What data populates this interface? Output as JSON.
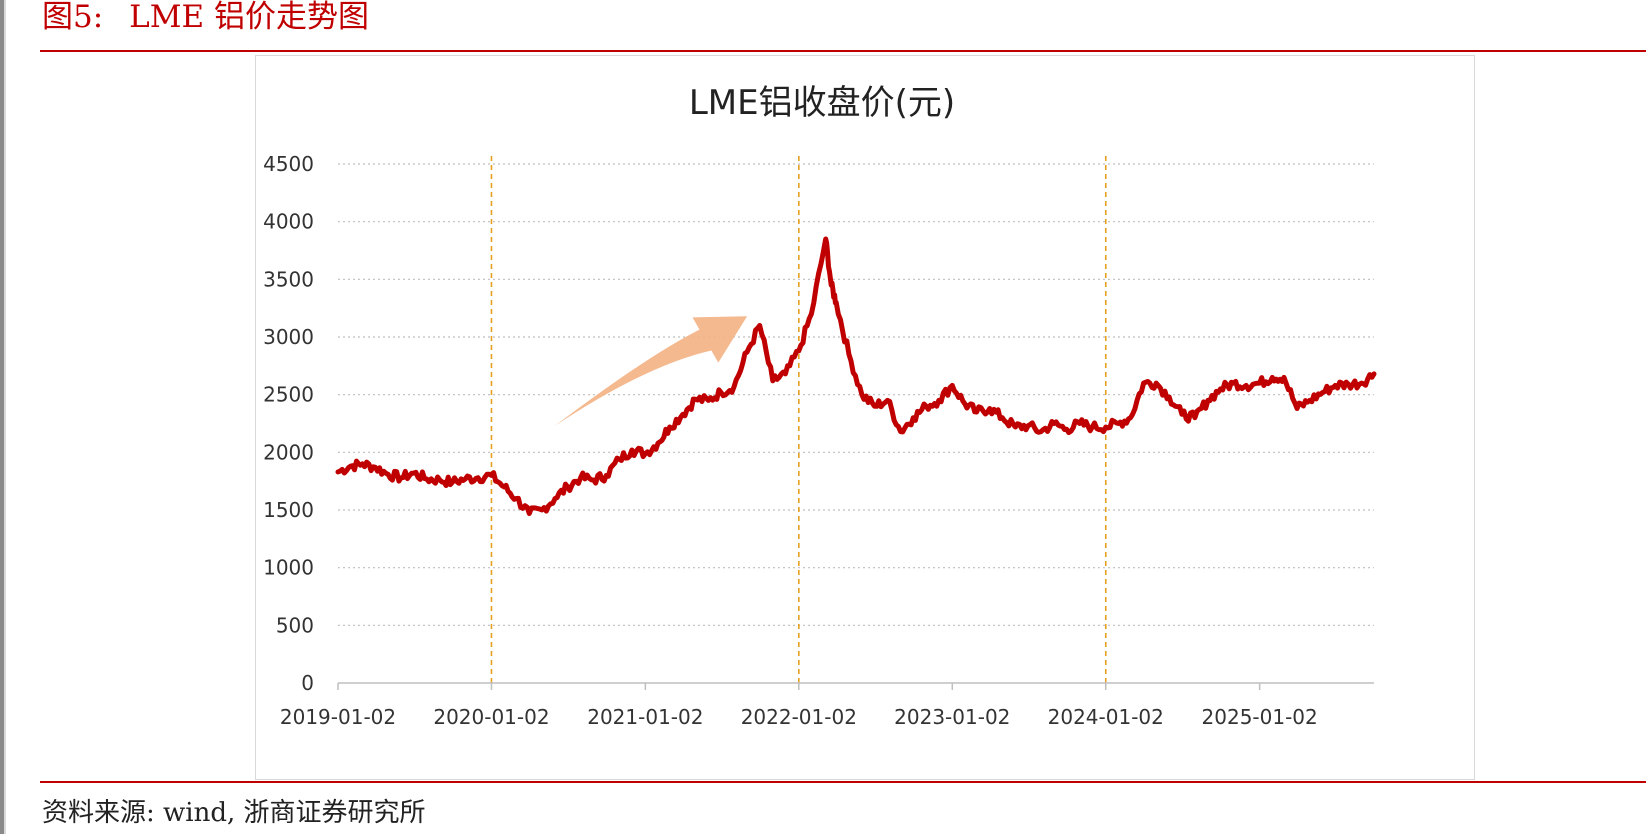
{
  "figure": {
    "label": "图5:",
    "title": "LME 铝价走势图"
  },
  "source": "资料来源: wind, 浙商证券研究所",
  "chart_data": {
    "type": "line",
    "title": "LME铝收盘价(元)",
    "xlabel": "",
    "ylabel": "",
    "ylim": [
      0,
      4500
    ],
    "yticks": [
      0,
      500,
      1000,
      1500,
      2000,
      2500,
      3000,
      3500,
      4000,
      4500
    ],
    "xticks": [
      "2019-01-02",
      "2020-01-02",
      "2021-01-02",
      "2022-01-02",
      "2023-01-02",
      "2024-01-02",
      "2025-01-02"
    ],
    "grid": "horizontal dotted",
    "legend": "none",
    "line_color": "#c00000",
    "annotation_line_color": "#e6a020",
    "arrow_color": "#f4b183",
    "vertical_markers": [
      "2020-01-02",
      "2022-01-02",
      "2024-01-02"
    ],
    "arrow": {
      "from": [
        "2020-06-01",
        2230
      ],
      "to": [
        "2021-09-01",
        3180
      ]
    },
    "series": [
      {
        "x": [
          "2019-01-02",
          "2019-02-01",
          "2019-03-01",
          "2019-04-01",
          "2019-05-01",
          "2019-06-01",
          "2019-07-01",
          "2019-08-01",
          "2019-09-01",
          "2019-10-01",
          "2019-11-01",
          "2019-12-01",
          "2020-01-02",
          "2020-02-01",
          "2020-03-01",
          "2020-04-01",
          "2020-05-01",
          "2020-06-01",
          "2020-07-01",
          "2020-08-01",
          "2020-09-01",
          "2020-10-01",
          "2020-11-01",
          "2020-12-01",
          "2021-01-02",
          "2021-02-01",
          "2021-03-01",
          "2021-04-01",
          "2021-05-01",
          "2021-06-01",
          "2021-07-01",
          "2021-08-01",
          "2021-09-01",
          "2021-10-01",
          "2021-11-01",
          "2021-12-01",
          "2022-01-02",
          "2022-02-01",
          "2022-03-07",
          "2022-03-20",
          "2022-04-01",
          "2022-05-01",
          "2022-06-01",
          "2022-07-01",
          "2022-08-01",
          "2022-09-01",
          "2022-10-01",
          "2022-11-01",
          "2022-12-01",
          "2023-01-02",
          "2023-02-01",
          "2023-03-01",
          "2023-04-01",
          "2023-05-01",
          "2023-06-01",
          "2023-07-01",
          "2023-08-01",
          "2023-09-01",
          "2023-10-01",
          "2023-11-01",
          "2023-12-01",
          "2024-01-02",
          "2024-02-01",
          "2024-03-01",
          "2024-04-01",
          "2024-05-01",
          "2024-06-01",
          "2024-07-01",
          "2024-08-01",
          "2024-09-01",
          "2024-10-01",
          "2024-11-01",
          "2024-12-01",
          "2025-01-02",
          "2025-02-01",
          "2025-03-01",
          "2025-04-01",
          "2025-05-01",
          "2025-06-01",
          "2025-07-01",
          "2025-08-01",
          "2025-09-01",
          "2025-10-01"
        ],
        "values": [
          1830,
          1880,
          1900,
          1870,
          1810,
          1780,
          1820,
          1770,
          1760,
          1740,
          1770,
          1780,
          1800,
          1700,
          1600,
          1470,
          1500,
          1600,
          1700,
          1780,
          1760,
          1800,
          1940,
          2020,
          1990,
          2080,
          2220,
          2330,
          2460,
          2450,
          2520,
          2570,
          2870,
          3100,
          2620,
          2680,
          2880,
          3200,
          3850,
          3450,
          3300,
          2850,
          2500,
          2400,
          2450,
          2180,
          2300,
          2400,
          2450,
          2580,
          2420,
          2350,
          2380,
          2300,
          2220,
          2230,
          2180,
          2250,
          2200,
          2250,
          2220,
          2220,
          2250,
          2300,
          2600,
          2600,
          2480,
          2330,
          2300,
          2450,
          2550,
          2600,
          2580,
          2600,
          2650,
          2650,
          2380,
          2450,
          2520,
          2580,
          2590,
          2600,
          2680
        ]
      }
    ]
  }
}
